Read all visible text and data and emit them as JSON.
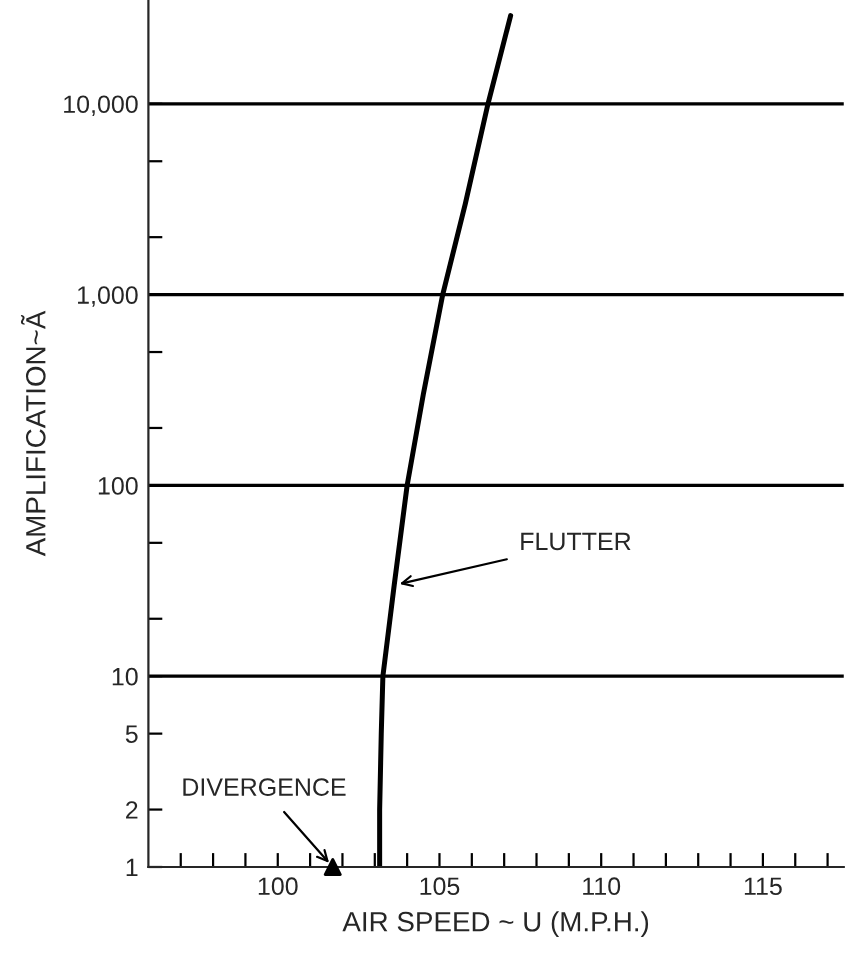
{
  "chart_data": {
    "type": "line",
    "xlabel": "AIR SPEED ~ U (M.P.H.)",
    "ylabel": "AMPLIFICATION~Ã",
    "log": "y",
    "xlim": [
      96,
      117.5
    ],
    "ylim": [
      1,
      35000
    ],
    "xticks": [
      {
        "value": 97,
        "label": null
      },
      {
        "value": 98,
        "label": null
      },
      {
        "value": 99,
        "label": null
      },
      100,
      {
        "value": 101,
        "label": null
      },
      {
        "value": 102,
        "label": null
      },
      {
        "value": 103,
        "label": null
      },
      {
        "value": 104,
        "label": null
      },
      105,
      {
        "value": 106,
        "label": null
      },
      {
        "value": 107,
        "label": null
      },
      {
        "value": 108,
        "label": null
      },
      {
        "value": 109,
        "label": null
      },
      110,
      {
        "value": 111,
        "label": null
      },
      {
        "value": 112,
        "label": null
      },
      {
        "value": 113,
        "label": null
      },
      {
        "value": 114,
        "label": null
      },
      115,
      {
        "value": 116,
        "label": null
      },
      {
        "value": 117,
        "label": null
      }
    ],
    "yticks": [
      1,
      2,
      5,
      10,
      {
        "value": 20,
        "label": null
      },
      {
        "value": 50,
        "label": null
      },
      100,
      {
        "value": 200,
        "label": null
      },
      {
        "value": 500,
        "label": null
      },
      {
        "value": 1000,
        "label": "1,000"
      },
      {
        "value": 2000,
        "label": null
      },
      {
        "value": 5000,
        "label": null
      },
      {
        "value": 10000,
        "label": "10,000"
      }
    ],
    "ref_lines": [
      {
        "axis": "y",
        "value": 10
      },
      {
        "axis": "y",
        "value": 100
      },
      {
        "axis": "y",
        "value": 1000
      },
      {
        "axis": "y",
        "value": 10000
      }
    ],
    "series": [
      {
        "color": "#000000",
        "x": [
          103.15,
          103.15,
          103.2,
          103.25,
          103.6,
          104.0,
          104.5,
          105.1,
          105.8,
          106.5,
          107.2
        ],
        "values": [
          1,
          2,
          5,
          10,
          30,
          100,
          300,
          1000,
          3000,
          10000,
          29000
        ]
      },
      {
        "type": "scatter",
        "color": "#000000",
        "marker": "triangle",
        "x": [
          101.7
        ],
        "values": [
          1
        ]
      }
    ],
    "annotations": [
      {
        "text": "FLUTTER",
        "x": 103.6,
        "y": 30
      },
      {
        "text": "DIVERGENCE",
        "x": 101.7,
        "y": 1
      }
    ],
    "grid": false,
    "legend": false
  }
}
